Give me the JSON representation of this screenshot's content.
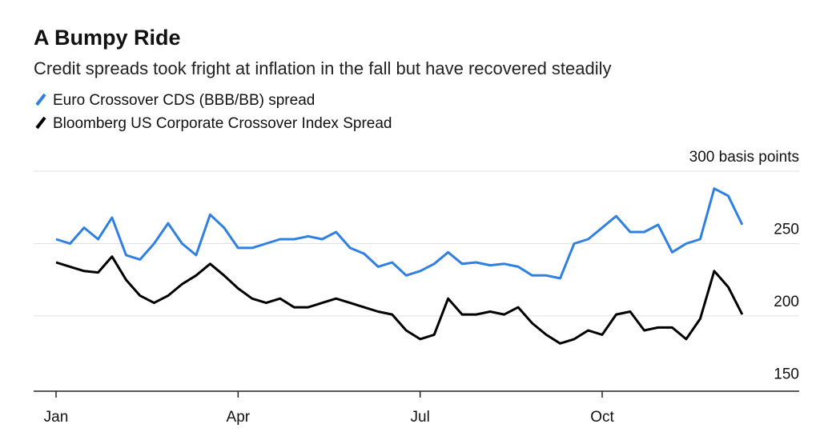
{
  "chart_data": {
    "type": "line",
    "title": "A Bumpy Ride",
    "subtitle": "Credit spreads took fright at inflation in the fall but have recovered steadily",
    "categories": [
      "Jan",
      null,
      null,
      null,
      null,
      null,
      null,
      null,
      null,
      null,
      null,
      null,
      null,
      "Apr",
      null,
      null,
      null,
      null,
      null,
      null,
      null,
      null,
      null,
      null,
      null,
      null,
      "Jul",
      null,
      null,
      null,
      null,
      null,
      null,
      null,
      null,
      null,
      null,
      null,
      null,
      "Oct",
      null,
      null,
      null,
      null,
      null,
      null,
      null,
      null,
      null,
      null
    ],
    "series": [
      {
        "name": "Euro Crossover CDS (BBB/BB) spread",
        "color": "#2f80e0",
        "values": [
          253,
          250,
          261,
          253,
          268,
          242,
          239,
          250,
          264,
          250,
          242,
          270,
          261,
          247,
          247,
          250,
          253,
          253,
          255,
          253,
          258,
          247,
          243,
          234,
          237,
          228,
          231,
          236,
          244,
          236,
          237,
          235,
          236,
          234,
          228,
          228,
          226,
          250,
          253,
          261,
          269,
          258,
          258,
          263,
          244,
          250,
          253,
          288,
          283,
          263
        ]
      },
      {
        "name": "Bloomberg US Corporate Crossover Index Spread",
        "color": "#000000",
        "values": [
          237,
          234,
          231,
          230,
          241,
          225,
          214,
          209,
          214,
          222,
          228,
          236,
          228,
          219,
          212,
          209,
          212,
          206,
          206,
          209,
          212,
          209,
          206,
          203,
          201,
          190,
          184,
          187,
          212,
          201,
          201,
          203,
          201,
          206,
          195,
          187,
          181,
          184,
          190,
          187,
          201,
          203,
          190,
          192,
          192,
          184,
          198,
          231,
          220,
          201
        ]
      }
    ],
    "ylim": [
      148,
      300
    ],
    "yticks": [
      150,
      200,
      250,
      {
        "value": 300,
        "label": "300 basis points"
      }
    ],
    "grid": true
  }
}
